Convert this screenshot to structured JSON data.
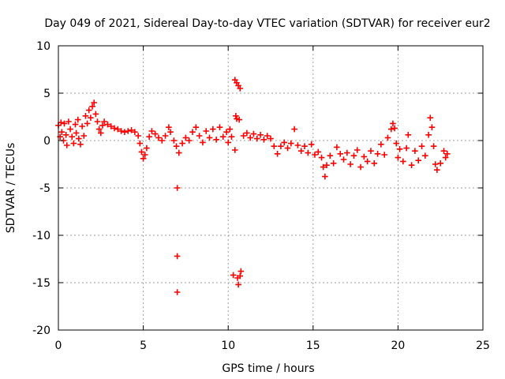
{
  "chart_data": {
    "type": "scatter",
    "title": "Day 049 of 2021, Sidereal Day-to-day VTEC variation (SDTVAR) for receiver eur2",
    "xlabel": "GPS time / hours",
    "ylabel": "SDTVAR / TECUs",
    "xlim": [
      0,
      25
    ],
    "ylim": [
      -20,
      10
    ],
    "xticks": [
      0,
      5,
      10,
      15,
      20,
      25
    ],
    "xtick_labels": [
      "0",
      "5",
      "10",
      "15",
      "20",
      "25"
    ],
    "yticks": [
      -20,
      -15,
      -10,
      -5,
      0,
      5,
      10
    ],
    "ytick_labels": [
      "-20",
      "-15",
      "-10",
      "-5",
      "0",
      "5",
      "10"
    ],
    "grid": true,
    "marker": "plus",
    "series": [
      {
        "name": "eur2",
        "color": "#ff0000",
        "points": [
          [
            0.0,
            1.6
          ],
          [
            0.1,
            0.4
          ],
          [
            0.15,
            1.9
          ],
          [
            0.2,
            0.9
          ],
          [
            0.3,
            0.0
          ],
          [
            0.35,
            1.8
          ],
          [
            0.45,
            0.6
          ],
          [
            0.5,
            -0.5
          ],
          [
            0.6,
            2.0
          ],
          [
            0.7,
            1.2
          ],
          [
            0.8,
            0.4
          ],
          [
            0.9,
            -0.3
          ],
          [
            1.0,
            1.7
          ],
          [
            1.05,
            0.8
          ],
          [
            1.15,
            2.2
          ],
          [
            1.2,
            0.2
          ],
          [
            1.3,
            -0.4
          ],
          [
            1.4,
            1.5
          ],
          [
            1.5,
            0.5
          ],
          [
            1.6,
            2.6
          ],
          [
            1.7,
            1.8
          ],
          [
            1.8,
            3.2
          ],
          [
            1.9,
            2.4
          ],
          [
            2.0,
            3.6
          ],
          [
            2.1,
            4.0
          ],
          [
            2.2,
            2.8
          ],
          [
            2.3,
            2.0
          ],
          [
            2.4,
            1.2
          ],
          [
            2.5,
            0.8
          ],
          [
            2.6,
            1.6
          ],
          [
            2.7,
            2.0
          ],
          [
            2.9,
            1.7
          ],
          [
            3.1,
            1.5
          ],
          [
            3.3,
            1.3
          ],
          [
            3.5,
            1.2
          ],
          [
            3.7,
            1.0
          ],
          [
            3.9,
            0.9
          ],
          [
            4.1,
            1.0
          ],
          [
            4.3,
            1.1
          ],
          [
            4.5,
            0.9
          ],
          [
            4.7,
            0.5
          ],
          [
            4.8,
            -0.3
          ],
          [
            4.9,
            -1.2
          ],
          [
            5.0,
            -1.9
          ],
          [
            5.1,
            -1.5
          ],
          [
            5.2,
            -0.8
          ],
          [
            5.35,
            0.4
          ],
          [
            5.5,
            1.0
          ],
          [
            5.7,
            0.7
          ],
          [
            5.9,
            0.3
          ],
          [
            6.1,
            0.0
          ],
          [
            6.3,
            0.5
          ],
          [
            6.5,
            1.4
          ],
          [
            6.6,
            0.9
          ],
          [
            6.8,
            0.0
          ],
          [
            6.95,
            -0.6
          ],
          [
            7.0,
            -5.0
          ],
          [
            7.0,
            -12.2
          ],
          [
            7.0,
            -16.0
          ],
          [
            7.1,
            -1.3
          ],
          [
            7.3,
            -0.3
          ],
          [
            7.5,
            0.3
          ],
          [
            7.7,
            0.0
          ],
          [
            7.9,
            0.9
          ],
          [
            8.1,
            1.4
          ],
          [
            8.3,
            0.5
          ],
          [
            8.5,
            -0.2
          ],
          [
            8.7,
            1.0
          ],
          [
            8.9,
            0.3
          ],
          [
            9.1,
            1.2
          ],
          [
            9.3,
            0.1
          ],
          [
            9.5,
            1.4
          ],
          [
            9.7,
            0.4
          ],
          [
            9.9,
            0.9
          ],
          [
            10.0,
            -0.2
          ],
          [
            10.1,
            1.2
          ],
          [
            10.2,
            0.4
          ],
          [
            10.3,
            -14.2
          ],
          [
            10.4,
            -1.0
          ],
          [
            10.45,
            2.6
          ],
          [
            10.5,
            2.3
          ],
          [
            10.55,
            -14.5
          ],
          [
            10.6,
            -15.2
          ],
          [
            10.65,
            2.2
          ],
          [
            10.7,
            -14.3
          ],
          [
            10.75,
            -13.8
          ],
          [
            10.4,
            6.4
          ],
          [
            10.5,
            6.1
          ],
          [
            10.6,
            5.8
          ],
          [
            10.7,
            5.5
          ],
          [
            10.9,
            0.5
          ],
          [
            11.1,
            0.8
          ],
          [
            11.3,
            0.3
          ],
          [
            11.5,
            0.7
          ],
          [
            11.7,
            0.2
          ],
          [
            11.9,
            0.6
          ],
          [
            12.1,
            0.1
          ],
          [
            12.3,
            0.5
          ],
          [
            12.5,
            0.2
          ],
          [
            12.7,
            -0.6
          ],
          [
            12.9,
            -1.4
          ],
          [
            13.1,
            -0.6
          ],
          [
            13.3,
            -0.2
          ],
          [
            13.5,
            -0.8
          ],
          [
            13.7,
            -0.3
          ],
          [
            13.9,
            1.2
          ],
          [
            14.1,
            -0.5
          ],
          [
            14.3,
            -1.1
          ],
          [
            14.5,
            -0.6
          ],
          [
            14.7,
            -1.3
          ],
          [
            14.9,
            -0.4
          ],
          [
            15.1,
            -1.5
          ],
          [
            15.3,
            -1.2
          ],
          [
            15.5,
            -1.8
          ],
          [
            15.6,
            -2.8
          ],
          [
            15.7,
            -3.8
          ],
          [
            15.8,
            -2.6
          ],
          [
            16.0,
            -1.6
          ],
          [
            16.2,
            -2.4
          ],
          [
            16.4,
            -0.7
          ],
          [
            16.6,
            -1.4
          ],
          [
            16.8,
            -2.0
          ],
          [
            17.0,
            -1.3
          ],
          [
            17.2,
            -2.5
          ],
          [
            17.4,
            -1.6
          ],
          [
            17.6,
            -1.0
          ],
          [
            17.8,
            -2.8
          ],
          [
            18.0,
            -1.7
          ],
          [
            18.2,
            -2.2
          ],
          [
            18.4,
            -1.1
          ],
          [
            18.6,
            -2.4
          ],
          [
            18.8,
            -1.4
          ],
          [
            19.0,
            -0.4
          ],
          [
            19.2,
            -1.5
          ],
          [
            19.4,
            0.3
          ],
          [
            19.6,
            1.2
          ],
          [
            19.7,
            1.8
          ],
          [
            19.8,
            1.3
          ],
          [
            19.9,
            -0.3
          ],
          [
            20.0,
            -1.8
          ],
          [
            20.1,
            -0.9
          ],
          [
            20.3,
            -2.2
          ],
          [
            20.5,
            -0.8
          ],
          [
            20.6,
            0.6
          ],
          [
            20.8,
            -2.6
          ],
          [
            21.0,
            -1.1
          ],
          [
            21.2,
            -2.1
          ],
          [
            21.4,
            -0.6
          ],
          [
            21.6,
            -1.6
          ],
          [
            21.8,
            0.6
          ],
          [
            21.9,
            2.4
          ],
          [
            22.0,
            1.4
          ],
          [
            22.1,
            -0.6
          ],
          [
            22.2,
            -2.5
          ],
          [
            22.3,
            -3.1
          ],
          [
            22.5,
            -2.4
          ],
          [
            22.7,
            -1.1
          ],
          [
            22.8,
            -1.8
          ],
          [
            22.9,
            -1.4
          ]
        ]
      }
    ]
  }
}
